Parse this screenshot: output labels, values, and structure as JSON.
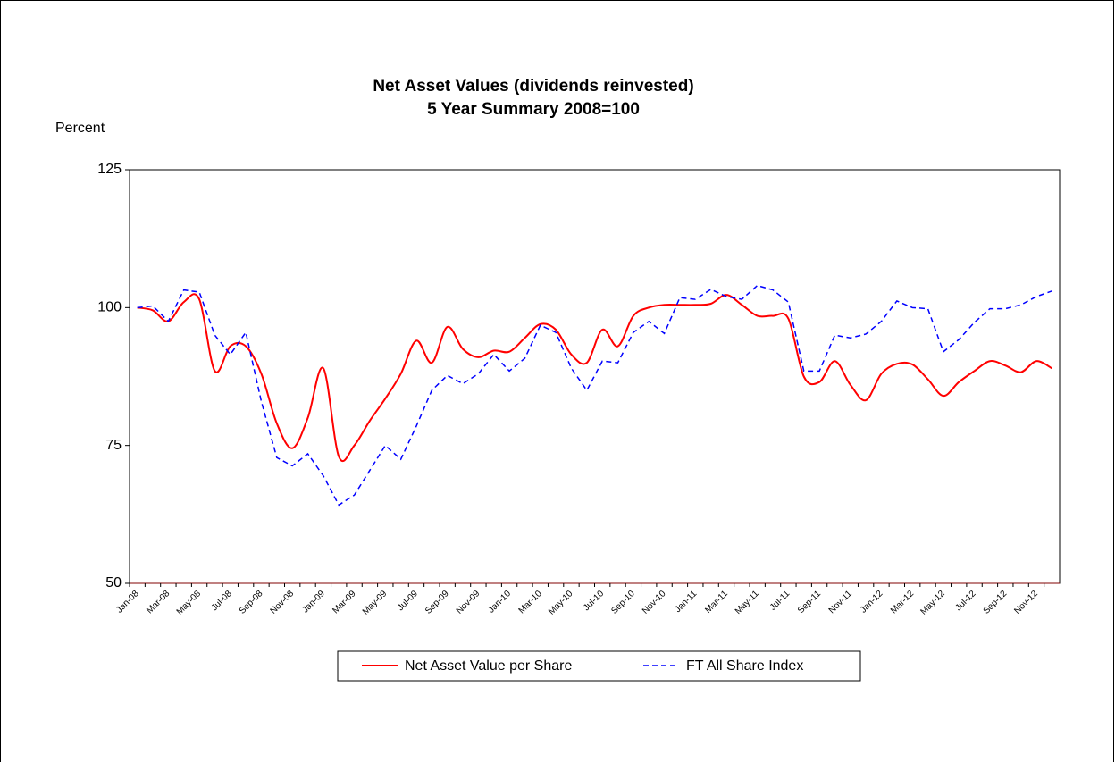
{
  "chart_data": {
    "type": "line",
    "title": [
      "Net Asset Values (dividends reinvested)",
      "5 Year Summary 2008=100"
    ],
    "y_label": "Percent",
    "categories": [
      "Jan-08",
      null,
      "Mar-08",
      null,
      "May-08",
      null,
      "Jul-08",
      null,
      "Sep-08",
      null,
      "Nov-08",
      null,
      "Jan-09",
      null,
      "Mar-09",
      null,
      "May-09",
      null,
      "Jul-09",
      null,
      "Sep-09",
      null,
      "Nov-09",
      null,
      "Jan-10",
      null,
      "Mar-10",
      null,
      "May-10",
      null,
      "Jul-10",
      null,
      "Sep-10",
      null,
      "Nov-10",
      null,
      "Jan-11",
      null,
      "Mar-11",
      null,
      "May-11",
      null,
      "Jul-11",
      null,
      "Sep-11",
      null,
      "Nov-11",
      null,
      "Jan-12",
      null,
      "Mar-12",
      null,
      "May-12",
      null,
      "Jul-12",
      null,
      "Sep-12",
      null,
      "Nov-12",
      null
    ],
    "series": [
      {
        "name": "Net Asset Value per Share",
        "color": "#ff0000",
        "dash": false,
        "values": [
          100,
          99.5,
          97.5,
          101,
          101.5,
          88.5,
          93,
          93,
          88,
          79,
          74.5,
          80,
          89,
          73,
          75,
          79.5,
          83.5,
          88,
          94,
          90,
          96.5,
          92.5,
          91,
          92.2,
          92,
          94.5,
          97,
          96,
          91.5,
          90,
          96,
          93,
          98.5,
          100,
          100.5,
          100.5,
          100.5,
          100.7,
          102.3,
          100.5,
          98.5,
          98.5,
          98,
          87.5,
          86.5,
          90.3,
          86,
          83.2,
          88,
          89.8,
          89.7,
          87,
          84,
          86.5,
          88.5,
          90.3,
          89.5,
          88.3,
          90.3,
          89
        ]
      },
      {
        "name": "FT All Share Index",
        "color": "#0000ff",
        "dash": true,
        "values": [
          100,
          100.3,
          97.5,
          103.2,
          102.8,
          95,
          91.5,
          95.5,
          83,
          72.8,
          71.3,
          73.5,
          69.5,
          64.2,
          66,
          70.5,
          75,
          72.5,
          78.5,
          85,
          87.7,
          86.2,
          88,
          91.5,
          88.5,
          90.8,
          96.8,
          95.5,
          89,
          85,
          90.3,
          90,
          95.5,
          97.5,
          95.3,
          101.8,
          101.5,
          103.3,
          102,
          101.5,
          104,
          103.2,
          101,
          88.5,
          88.5,
          95,
          94.5,
          95.2,
          97.5,
          101.2,
          100,
          99.8,
          92,
          94.2,
          97.3,
          99.8,
          99.8,
          100.5,
          102,
          103
        ]
      }
    ],
    "ylim": [
      50,
      125
    ],
    "yticks": [
      50,
      75,
      100,
      125
    ],
    "grid": false,
    "legend": "bottom"
  }
}
